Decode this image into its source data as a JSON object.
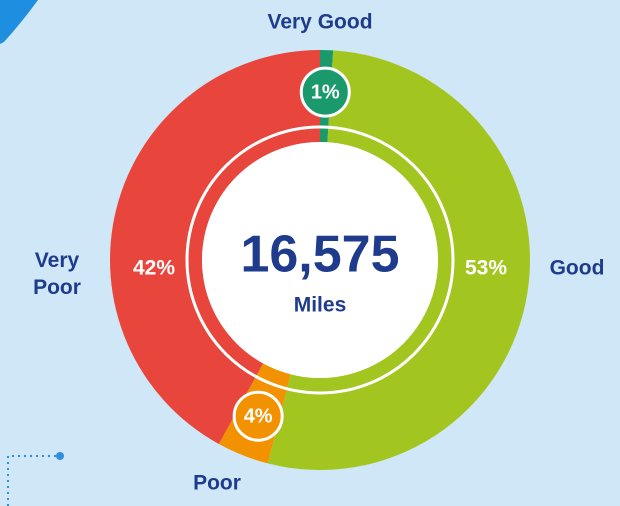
{
  "chart_data": {
    "type": "donut",
    "center_value": "16,575",
    "center_unit": "Miles",
    "categories": [
      "Very Good",
      "Good",
      "Poor",
      "Very Poor"
    ],
    "values": [
      1,
      53,
      4,
      42
    ],
    "value_labels": [
      "1%",
      "53%",
      "4%",
      "42%"
    ],
    "colors": [
      "#1a9a6c",
      "#a2c61f",
      "#f39200",
      "#e8463c"
    ]
  }
}
